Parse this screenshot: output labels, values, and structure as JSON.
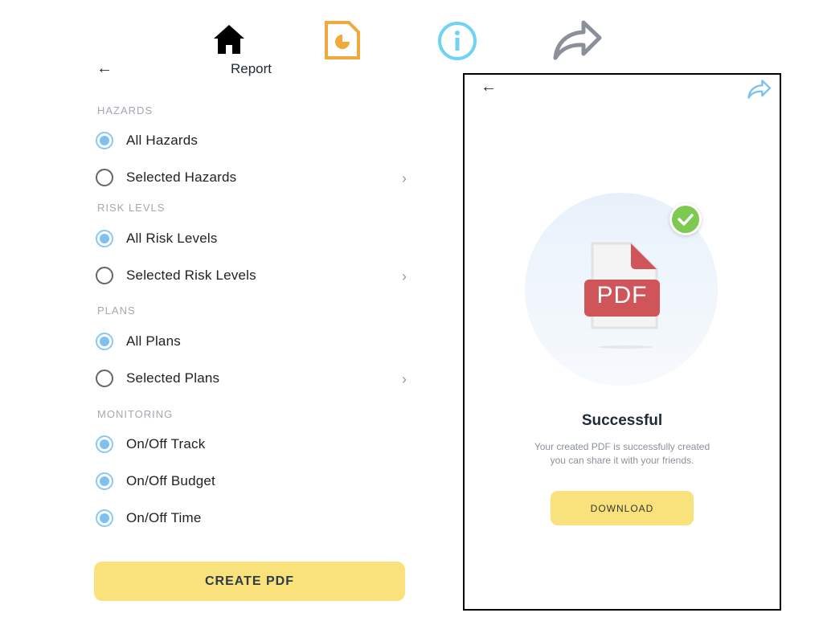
{
  "toolbar": {
    "icons": [
      "home-icon",
      "report-file-icon",
      "info-icon",
      "share-icon"
    ],
    "colors": {
      "home": "#000000",
      "report": "#f2a93b",
      "info": "#6fd3f5",
      "share": "#8a8f99"
    }
  },
  "report": {
    "title": "Report",
    "sections": [
      {
        "header": "HAZARDS",
        "options": [
          {
            "label": "All Hazards",
            "selected": true,
            "chevron": false
          },
          {
            "label": "Selected Hazards",
            "selected": false,
            "chevron": true
          }
        ]
      },
      {
        "header": "RISK LEVLS",
        "options": [
          {
            "label": "All Risk Levels",
            "selected": true,
            "chevron": false
          },
          {
            "label": "Selected Risk Levels",
            "selected": false,
            "chevron": true
          }
        ]
      },
      {
        "header": "PLANS",
        "options": [
          {
            "label": "All Plans",
            "selected": true,
            "chevron": false
          },
          {
            "label": "Selected Plans",
            "selected": false,
            "chevron": true
          }
        ]
      },
      {
        "header": "MONITORING",
        "options": [
          {
            "label": "On/Off Track",
            "selected": true,
            "chevron": false
          },
          {
            "label": "On/Off Budget",
            "selected": true,
            "chevron": false
          },
          {
            "label": "On/Off Time",
            "selected": true,
            "chevron": false
          }
        ]
      }
    ],
    "create_label": "CREATE PDF"
  },
  "success": {
    "badge": "PDF",
    "title": "Successful",
    "line1": "Your created PDF is successfully created",
    "line2": "you can share it with your friends.",
    "download_label": "DOWNLOAD"
  },
  "accent": "#f9e27c"
}
